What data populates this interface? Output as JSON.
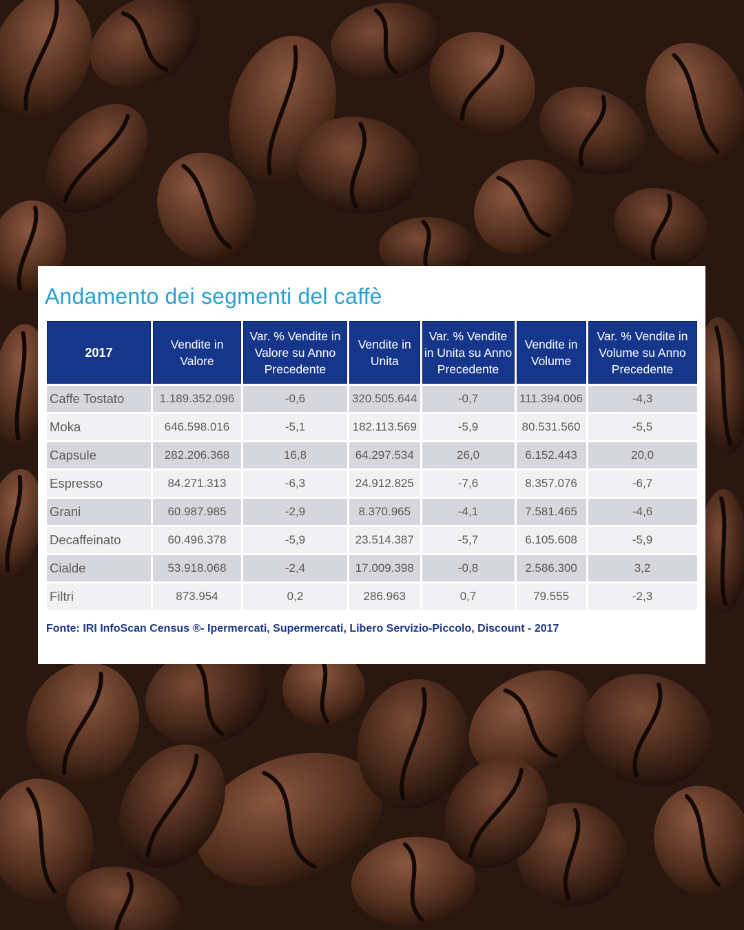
{
  "title": "Andamento dei segmenti del caffè",
  "source": "Fonte: IRI InfoScan Census ®- Ipermercati, Supermercati, Libero Servizio-Piccolo, Discount - 2017",
  "colors": {
    "header_bg": "#16368c",
    "title": "#2a9fd0",
    "row_dark": "#d6d6dd",
    "row_light": "#f1f1f3"
  },
  "chart_data": {
    "type": "table",
    "title": "Andamento dei segmenti del caffè",
    "columns": [
      "2017",
      "Vendite in Valore",
      "Var. % Vendite in Valore su Anno Precedente",
      "Vendite in Unita",
      "Var. % Vendite in Unita su Anno Precedente",
      "Vendite in Volume",
      "Var. % Vendite in Volume su Anno Precedente"
    ],
    "rows": [
      [
        "Caffe Tostato",
        "1.189.352.096",
        "-0,6",
        "320.505.644",
        "-0,7",
        "111.394.006",
        "-4,3"
      ],
      [
        "Moka",
        "646.598.016",
        "-5,1",
        "182.113.569",
        "-5,9",
        "80.531.560",
        "-5,5"
      ],
      [
        "Capsule",
        "282.206.368",
        "16,8",
        "64.297.534",
        "26,0",
        "6.152.443",
        "20,0"
      ],
      [
        "Espresso",
        "84.271.313",
        "-6,3",
        "24.912.825",
        "-7,6",
        "8.357.076",
        "-6,7"
      ],
      [
        "Grani",
        "60.987.985",
        "-2,9",
        "8.370.965",
        "-4,1",
        "7.581.465",
        "-4,6"
      ],
      [
        "Decaffeinato",
        "60.496.378",
        "-5,9",
        "23.514.387",
        "-5,7",
        "6.105.608",
        "-5,9"
      ],
      [
        "Cialde",
        "53.918.068",
        "-2,4",
        "17.009.398",
        "-0,8",
        "2.586.300",
        "3,2"
      ],
      [
        "Filtri",
        "873.954",
        "0,2",
        "286.963",
        "0,7",
        "79.555",
        "-2,3"
      ]
    ]
  }
}
